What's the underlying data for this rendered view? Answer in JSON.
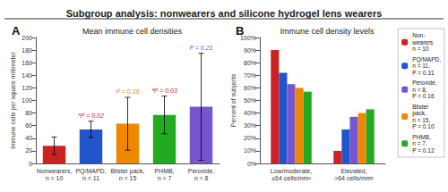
{
  "title": "Subgroup analysis: nonwearers and silicone hydrogel lens wearers",
  "chart_data": [
    {
      "type": "bar",
      "label": "A",
      "title": "Mean immune cell densities",
      "ylabel": "Immune cells per square millimeter",
      "categories": [
        "Nonwearers,\nn = 10",
        "PQ/MAPD,\nn = 11",
        "Blister pack,\nn = 15",
        "PHMB,\nn = 7",
        "Peroxide,\nn = 8"
      ],
      "values": [
        28,
        54,
        63,
        77,
        90
      ],
      "errors": [
        14,
        13,
        42,
        30,
        85
      ],
      "colors": [
        "#cc2222",
        "#2255cc",
        "#ee8800",
        "#22aa22",
        "#7755cc"
      ],
      "annotations": [
        {
          "x": "PQ/MAPD,\nn = 11",
          "text": "*P = 0.02",
          "color": "#cc2222"
        },
        {
          "x": "Blister pack,\nn = 15",
          "text": "P = 0.16",
          "color": "#ee8800"
        },
        {
          "x": "PHMB,\nn = 7",
          "text": "*P = 0.03",
          "color": "#cc2222"
        },
        {
          "x": "Peroxide,\nn = 8",
          "text": "P = 0.21",
          "color": "#7755cc"
        }
      ],
      "ylim": [
        0,
        200
      ],
      "yticks": [
        0,
        20,
        40,
        60,
        80,
        100,
        120,
        140,
        160,
        180,
        200
      ],
      "grid": false
    },
    {
      "type": "bar",
      "label": "B",
      "title": "Immune cell density levels",
      "ylabel": "Percent of subjects",
      "categories": [
        "Low/moderate,\n≤64 cells/mm²",
        "Elevated,\n>64 cells/mm²"
      ],
      "series": [
        {
          "name": "Non-\nwearers\nn = 10",
          "color": "#cc2222",
          "values": [
            90,
            10
          ]
        },
        {
          "name": "PQ/MAPD,\nn = 11,\nP = 0.31",
          "color": "#2255cc",
          "values": [
            72,
            27
          ]
        },
        {
          "name": "Peroxide,\nn = 8,\nP = 0.16",
          "color": "#7755cc",
          "values": [
            63,
            37
          ]
        },
        {
          "name": "Blister\npack,\nn = 15,\nP = 0.10",
          "color": "#ee8800",
          "values": [
            60,
            40
          ]
        },
        {
          "name": "PHMB,\nn = 7,\nP = 0.12",
          "color": "#22aa22",
          "values": [
            57,
            43
          ]
        }
      ],
      "ylim": [
        0,
        100
      ],
      "yticks": [
        {
          "value": 0,
          "label": "0%"
        },
        {
          "value": 10,
          "label": "10%"
        },
        {
          "value": 20,
          "label": "20%"
        },
        {
          "value": 30,
          "label": "30%"
        },
        {
          "value": 40,
          "label": "40%"
        },
        {
          "value": 50,
          "label": "50%"
        },
        {
          "value": 60,
          "label": "60%"
        },
        {
          "value": 70,
          "label": "70%"
        },
        {
          "value": 80,
          "label": "80%"
        },
        {
          "value": 90,
          "label": "90%"
        },
        {
          "value": 100,
          "label": "100%"
        }
      ],
      "grid": false,
      "legend": "right"
    }
  ]
}
